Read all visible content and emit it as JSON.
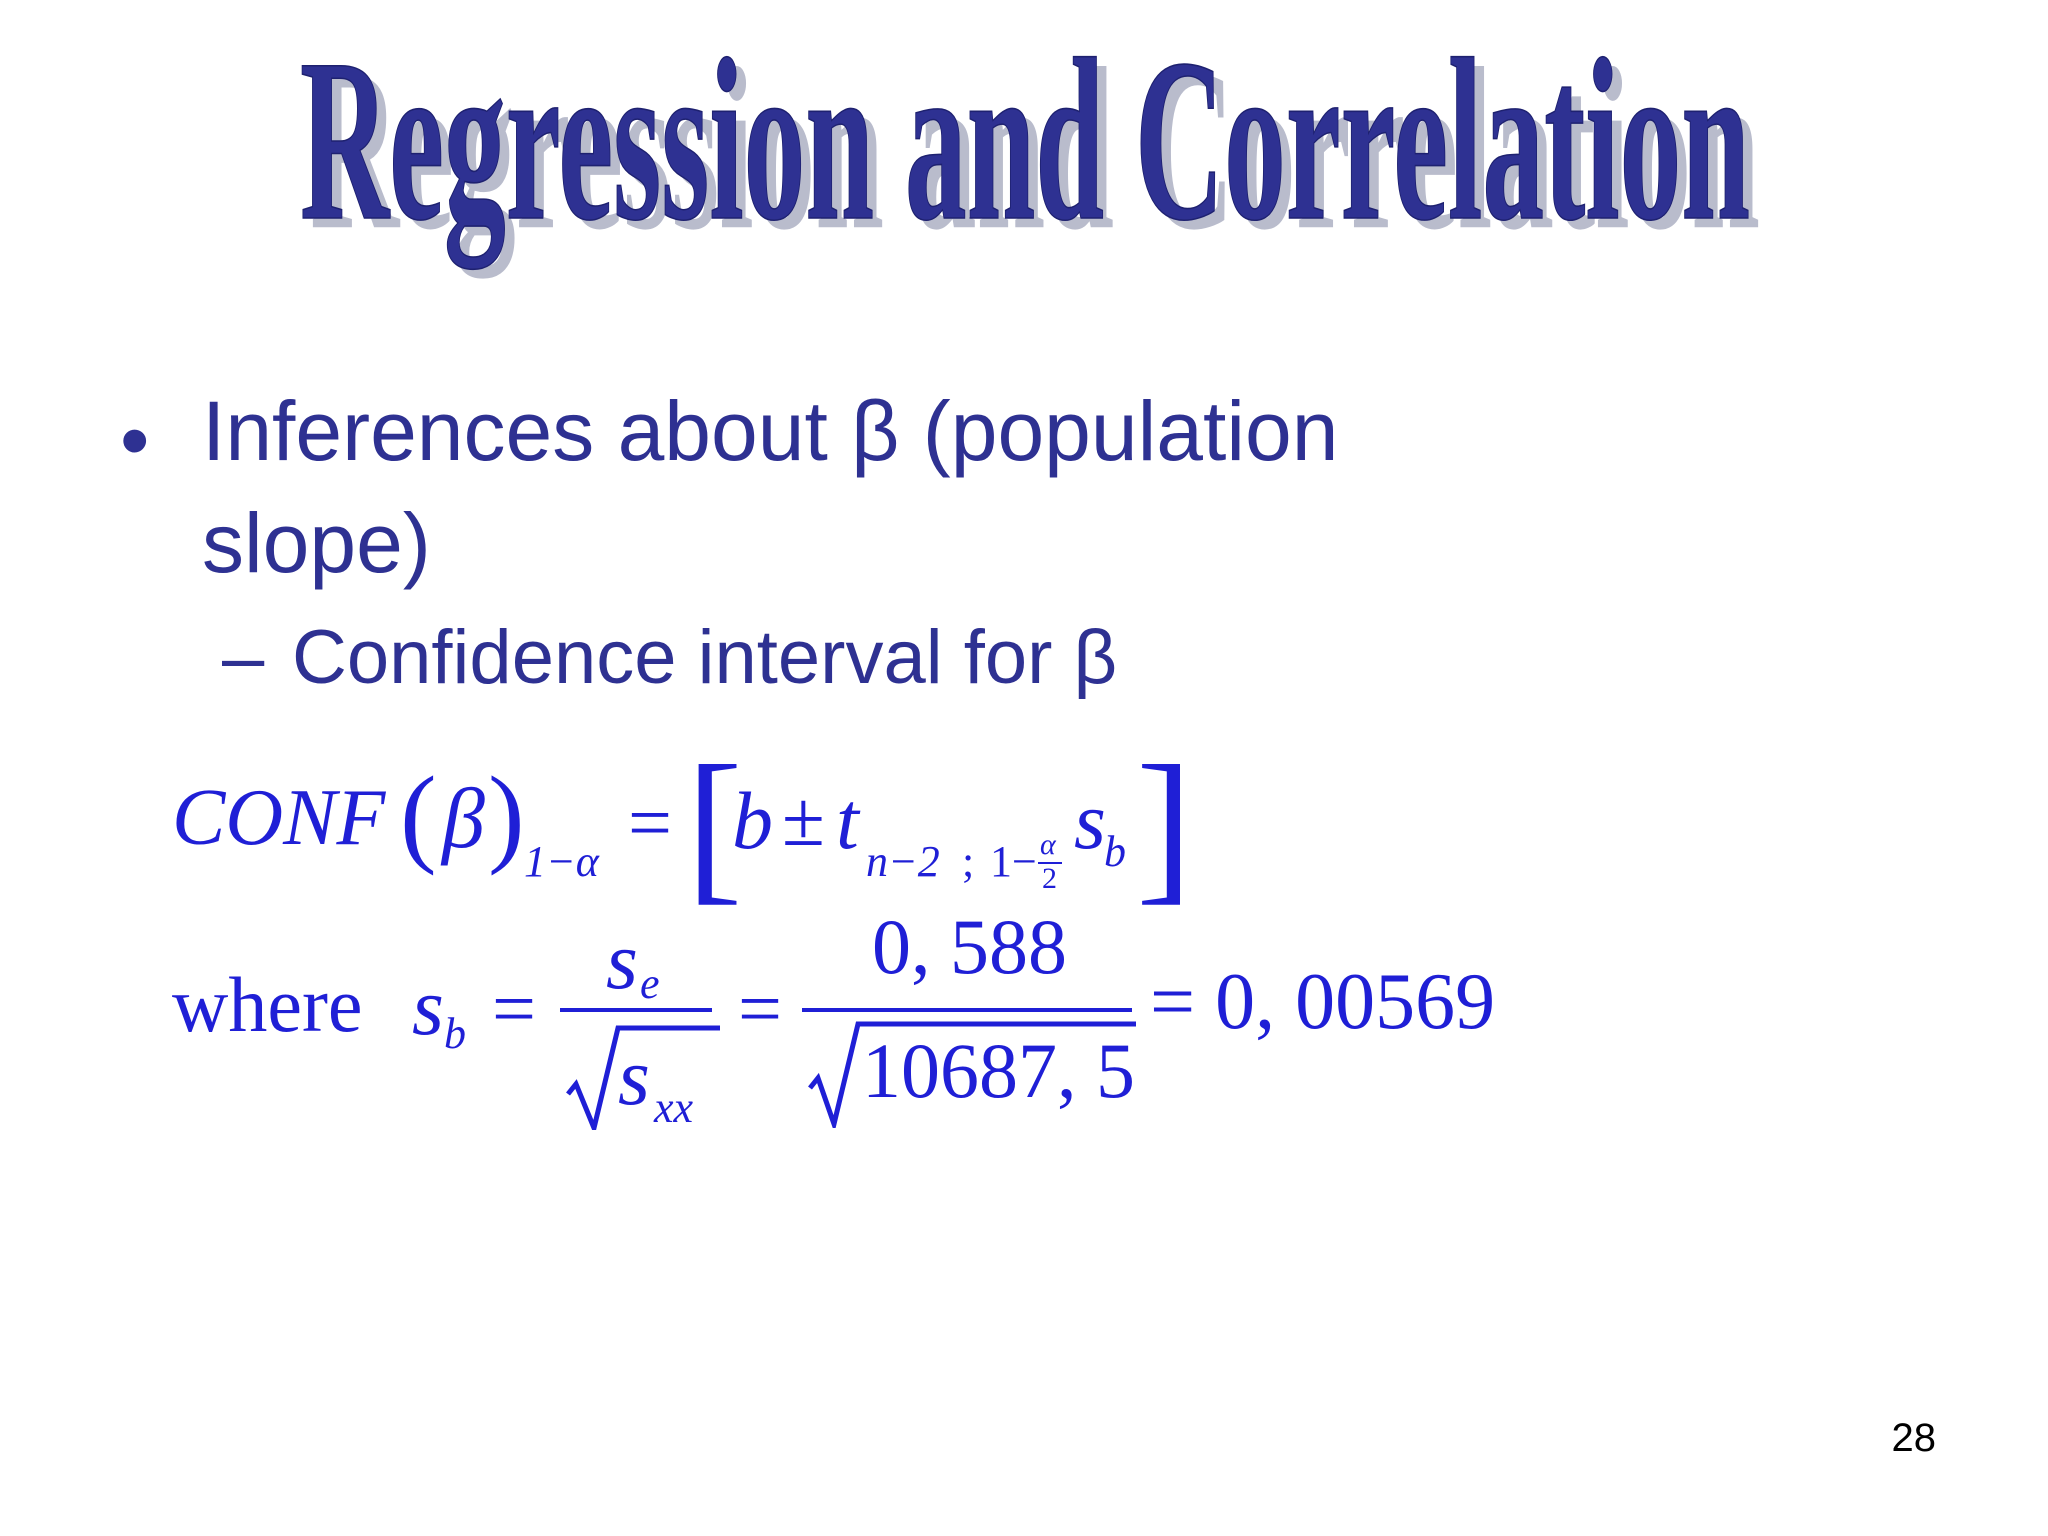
{
  "slide": {
    "title": "Regression and Correlation",
    "bullet_level1": "Inferences about β (population slope)",
    "bullet_level2": "Confidence interval for β",
    "formula1": {
      "lhs": "CONF",
      "beta": "β",
      "lhs_subscript": "1−α",
      "equals": "=",
      "b": "b",
      "plusminus": "±",
      "t": "t",
      "t_subscript_a": "n−2",
      "t_subscript_sep": ";",
      "t_subscript_b": "1−",
      "alpha": "α",
      "two": "2",
      "s": "s",
      "s_subscript": "b"
    },
    "formula2": {
      "where": "where",
      "s": "s",
      "s_sub": "b",
      "equals": "=",
      "num1": "s",
      "num1_sub": "e",
      "den1": "s",
      "den1_sub": "xx",
      "num2": "0, 588",
      "den2": "10687, 5",
      "result": "= 0, 00569"
    },
    "page_number": "28"
  }
}
